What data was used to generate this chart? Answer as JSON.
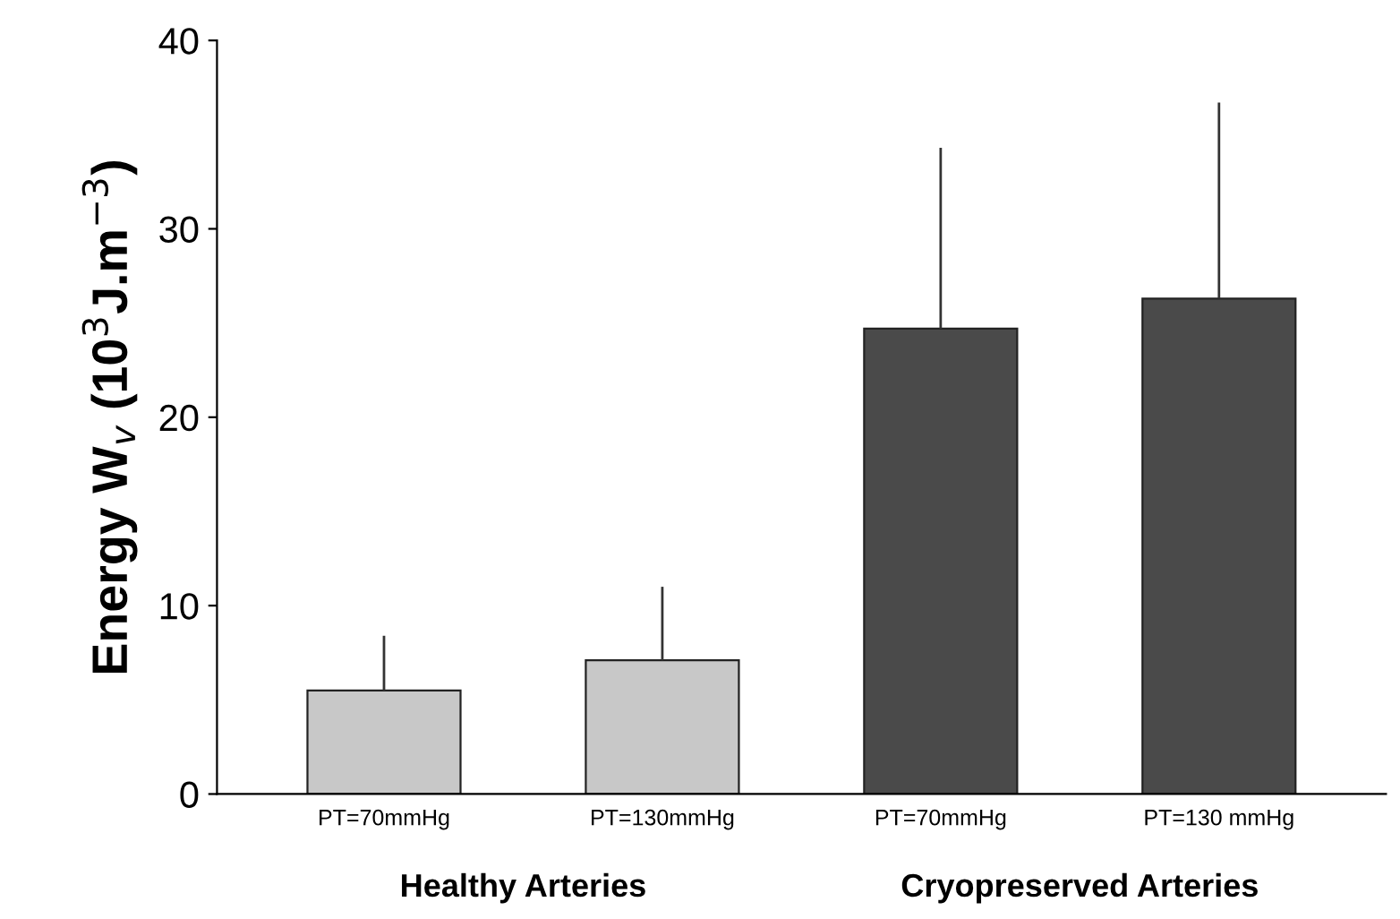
{
  "chart_data": {
    "type": "bar",
    "ylabel": "Energy W$_{v}$ (10$^{3}$J.m$^{−3}$)",
    "categories": [
      "PT=70mmHg",
      "PT=130mmHg",
      "PT=70mmHg",
      "PT=130 mmHg"
    ],
    "values": [
      5.5,
      7.1,
      24.7,
      26.3
    ],
    "errors": [
      [
        5.5,
        8.4
      ],
      [
        7.1,
        11.0
      ],
      [
        24.7,
        34.3
      ],
      [
        26.3,
        36.7
      ]
    ],
    "colors": [
      "#c8c8c8",
      "#c8c8c8",
      "#4a4a4a",
      "#4a4a4a"
    ],
    "ylim": [
      0,
      40
    ],
    "yticks": [
      0,
      10,
      20,
      30,
      40
    ],
    "grid": false,
    "legend": false,
    "annotations": [
      "Healthy Arteries",
      "Cryopreserved Arteries"
    ]
  }
}
